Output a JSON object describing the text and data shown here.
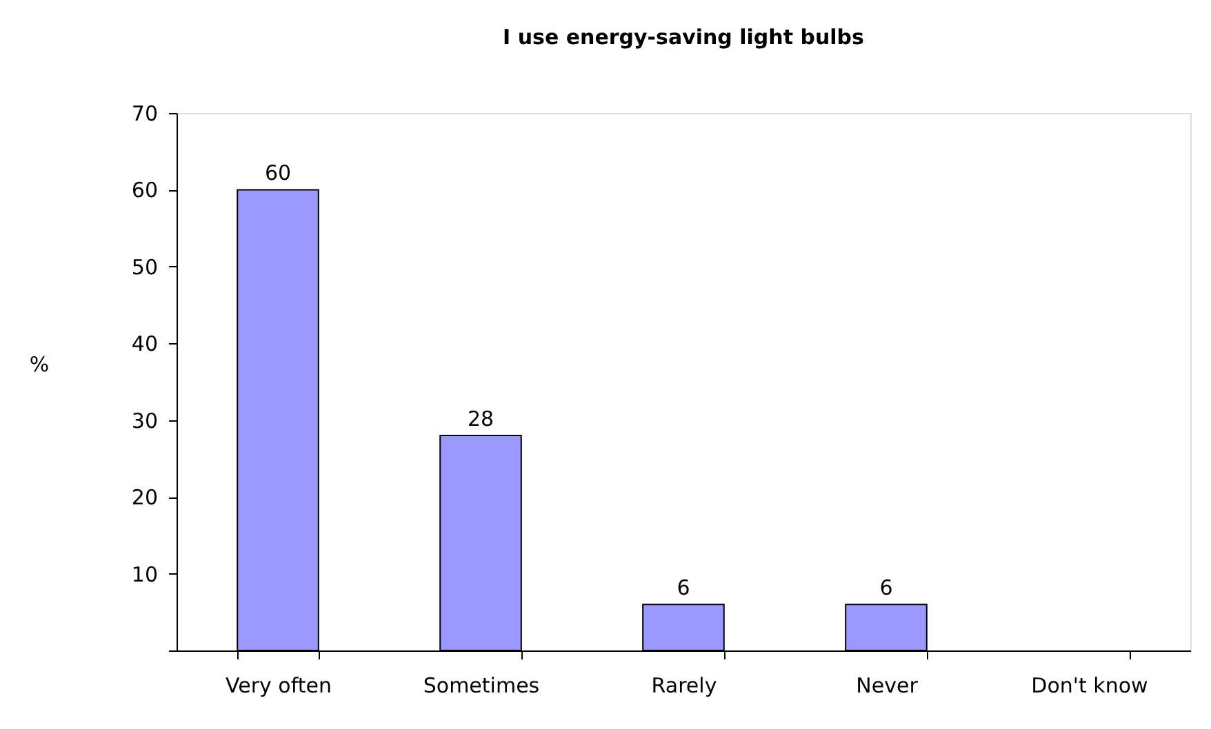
{
  "chart_data": {
    "type": "bar",
    "title": "I use energy-saving light bulbs",
    "ylabel": "%",
    "categories": [
      "Very often",
      "Sometimes",
      "Rarely",
      "Never",
      "Don't know"
    ],
    "values": [
      60,
      28,
      6,
      6,
      null
    ],
    "color": "#9999ff",
    "ylim": [
      0,
      70
    ],
    "yticks": [
      {
        "value": 0,
        "label": null
      },
      10,
      20,
      30,
      40,
      50,
      60,
      70
    ],
    "grid": false,
    "data_labels": true
  }
}
